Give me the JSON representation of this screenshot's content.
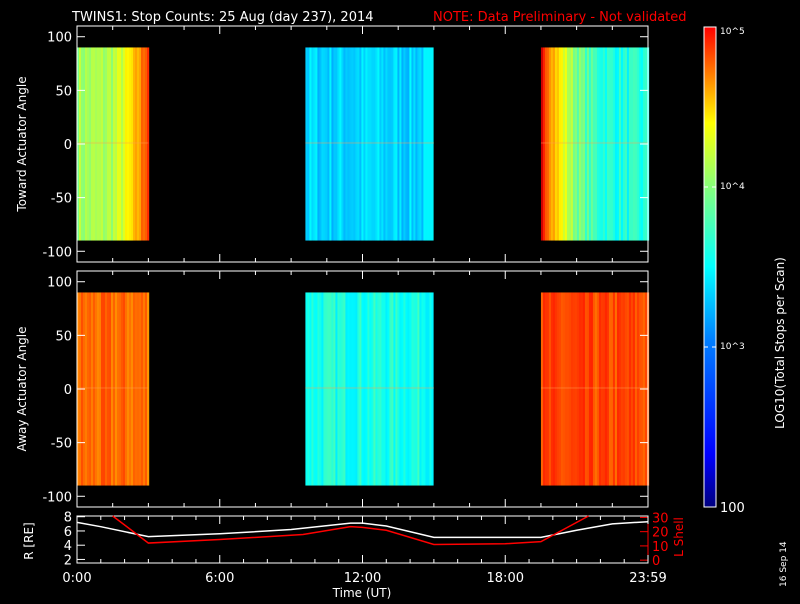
{
  "title": "TWINS1: Stop Counts: 25 Aug (day 237), 2014",
  "note": "NOTE: Data Preliminary - Not validated",
  "stamp": "16 Sep 14",
  "colors": {
    "note": "#ff0000",
    "lshell": "#ff0000",
    "axis": "#ffffff"
  },
  "chart_data": [
    {
      "type": "heatmap",
      "name": "toward",
      "ylabel": "Toward Actuator Angle",
      "ylim": [
        -110,
        110
      ],
      "yticks": [
        100,
        50,
        0,
        -50,
        -100
      ],
      "xlim": [
        0,
        24
      ],
      "blocks": [
        {
          "t": [
            0,
            3
          ],
          "angle": [
            -90,
            90
          ],
          "log_level": 3.6,
          "edge_level": 4.6
        },
        {
          "t": [
            9.6,
            15
          ],
          "angle": [
            -90,
            90
          ],
          "log_level": 3.0,
          "edge_level": 3.1
        },
        {
          "t": [
            19.5,
            24
          ],
          "angle": [
            -90,
            90
          ],
          "log_level": 3.2,
          "edge_level": 4.7
        }
      ]
    },
    {
      "type": "heatmap",
      "name": "away",
      "ylabel": "Away Actuator Angle",
      "ylim": [
        -110,
        110
      ],
      "yticks": [
        100,
        50,
        0,
        -50,
        -100
      ],
      "xlim": [
        0,
        24
      ],
      "blocks": [
        {
          "t": [
            0,
            3
          ],
          "angle": [
            -90,
            90
          ],
          "log_level": 4.3,
          "edge_level": 4.8
        },
        {
          "t": [
            9.6,
            15
          ],
          "angle": [
            -90,
            90
          ],
          "log_level": 3.2,
          "edge_level": 3.3
        },
        {
          "t": [
            19.5,
            24
          ],
          "angle": [
            -90,
            90
          ],
          "log_level": 4.4,
          "edge_level": 4.85
        }
      ]
    },
    {
      "type": "line",
      "name": "orbit",
      "xlabel": "Time (UT)",
      "xticks": [
        "0:00",
        "6:00",
        "12:00",
        "18:00",
        "23:59"
      ],
      "xtick_values": [
        0,
        6,
        12,
        18,
        24
      ],
      "ylabel": "R [RE]",
      "yticks": [
        2,
        4,
        6,
        8
      ],
      "ylim": [
        1.5,
        8.1
      ],
      "y2label": "L Shell",
      "y2ticks": [
        0,
        10,
        20,
        30
      ],
      "y2lim": [
        -2,
        31
      ],
      "series": [
        {
          "name": "R",
          "color": "#ffffff",
          "x": [
            0,
            1,
            3,
            6,
            9,
            11.5,
            12,
            13,
            15,
            19.5,
            21,
            22.5,
            24
          ],
          "y": [
            7.2,
            6.6,
            5.2,
            5.6,
            6.2,
            7.1,
            7.1,
            6.7,
            5.1,
            5.1,
            6.1,
            7.0,
            7.3
          ]
        },
        {
          "name": "L Shell",
          "axis": "y2",
          "color": "#ff0000",
          "x": [
            1.5,
            3,
            6,
            9.5,
            11.5,
            12,
            13,
            15,
            18,
            19.5,
            21.5
          ],
          "y": [
            31,
            12,
            14.5,
            18,
            23.5,
            23,
            21,
            11,
            11.5,
            13,
            31
          ]
        }
      ]
    },
    {
      "type": "colorbar",
      "label": "LOG10(Total Stops per Scan)",
      "ticks": [
        "10^5",
        "10^4",
        "10^3",
        "100"
      ],
      "tick_values": [
        5,
        4,
        3,
        2
      ],
      "range": [
        2,
        5
      ]
    }
  ]
}
